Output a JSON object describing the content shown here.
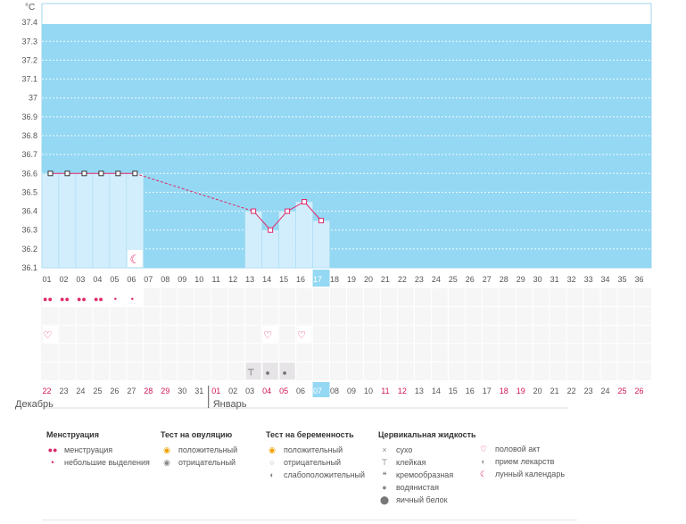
{
  "chart_data": {
    "type": "line",
    "unit": "°C",
    "ylim": [
      36.1,
      37.5
    ],
    "yticks": [
      37.4,
      37.3,
      37.2,
      37.1,
      37,
      36.9,
      36.8,
      36.7,
      36.6,
      36.5,
      36.4,
      36.3,
      36.2,
      36.1
    ],
    "cycle_days": [
      "01",
      "02",
      "03",
      "04",
      "05",
      "06",
      "07",
      "08",
      "09",
      "10",
      "11",
      "12",
      "13",
      "14",
      "15",
      "16",
      "17",
      "18",
      "19",
      "20",
      "21",
      "22",
      "23",
      "24",
      "25",
      "26",
      "27",
      "28",
      "29",
      "30",
      "31",
      "32",
      "33",
      "34",
      "35",
      "36"
    ],
    "calendar_dates": [
      "22",
      "23",
      "24",
      "25",
      "26",
      "27",
      "28",
      "29",
      "30",
      "31",
      "01",
      "02",
      "03",
      "04",
      "05",
      "06",
      "07",
      "08",
      "09",
      "10",
      "11",
      "12",
      "13",
      "14",
      "15",
      "16",
      "17",
      "18",
      "19",
      "20",
      "21",
      "22",
      "23",
      "24",
      "25",
      "26"
    ],
    "red_dates_index": [
      0,
      6,
      7,
      10,
      13,
      14,
      20,
      21,
      27,
      28,
      34,
      35
    ],
    "highlight_index": 16,
    "months": [
      {
        "label": "Декабрь",
        "start_index": 0
      },
      {
        "label": "Январь",
        "start_index": 10
      }
    ],
    "temperatures": [
      36.6,
      36.6,
      36.6,
      36.6,
      36.6,
      36.6,
      null,
      null,
      null,
      null,
      null,
      null,
      36.4,
      36.3,
      36.4,
      36.45,
      36.35
    ],
    "series": [
      {
        "values": [
          36.6,
          36.6,
          36.6,
          36.6,
          36.6,
          36.6,
          null,
          null,
          null,
          null,
          null,
          null,
          36.4,
          36.3,
          36.4,
          36.45,
          36.35
        ]
      }
    ],
    "grid": true,
    "marks": {
      "moon": [
        5
      ],
      "menstruation": [
        0,
        1,
        2,
        3
      ],
      "light_discharge": [
        4,
        5
      ],
      "intercourse": [
        0,
        13,
        15
      ],
      "cervical_sticky": [
        12
      ],
      "cervical_watery": [
        13,
        14
      ]
    }
  },
  "legend": {
    "menstruation": {
      "title": "Менструация",
      "items": [
        "менструация",
        "небольшие выделения"
      ]
    },
    "ovulation": {
      "title": "Тест на овуляцию",
      "items": [
        "положительный",
        "отрицательный"
      ]
    },
    "pregnancy": {
      "title": "Тест на беременность",
      "items": [
        "положительный",
        "отрицательный",
        "слабоположительный"
      ]
    },
    "cervical": {
      "title": "Цервикальная жидкость",
      "items": [
        "сухо",
        "клейкая",
        "кремообразная",
        "водянистая",
        "яичный белок"
      ]
    },
    "other": {
      "items": [
        "половой акт",
        "прием лекарств",
        "лунный календарь"
      ]
    }
  },
  "colors": {
    "background": "#94d8f3",
    "bar": "#d2eefc",
    "line": "#e0286a",
    "highlight": "#94d8f3"
  }
}
